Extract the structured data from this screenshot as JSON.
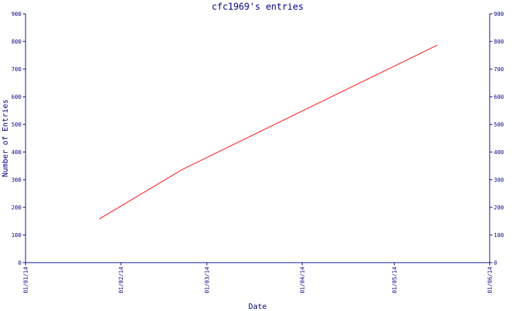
{
  "chart_data": {
    "type": "line",
    "title": "cfc1969's entries",
    "xlabel": "Date",
    "ylabel": "Number of Entries",
    "x_ticks": [
      "01/01/14",
      "01/02/14",
      "01/03/14",
      "01/04/14",
      "01/05/14",
      "01/06/14"
    ],
    "xlim": [
      "2014-01-01",
      "2014-06-01"
    ],
    "y_ticks": [
      "0",
      "100",
      "200",
      "300",
      "400",
      "500",
      "600",
      "700",
      "800",
      "900"
    ],
    "ylim": [
      0,
      900
    ],
    "grid": false,
    "y_axis_right": true,
    "series": [
      {
        "color": "#ff0000",
        "points": [
          {
            "x": "2014-01-25",
            "y": 158
          },
          {
            "x": "2014-02-21",
            "y": 337
          },
          {
            "x": "2014-05-15",
            "y": 787
          }
        ]
      }
    ],
    "axis_color": "#000080",
    "text_color": "#000080"
  }
}
